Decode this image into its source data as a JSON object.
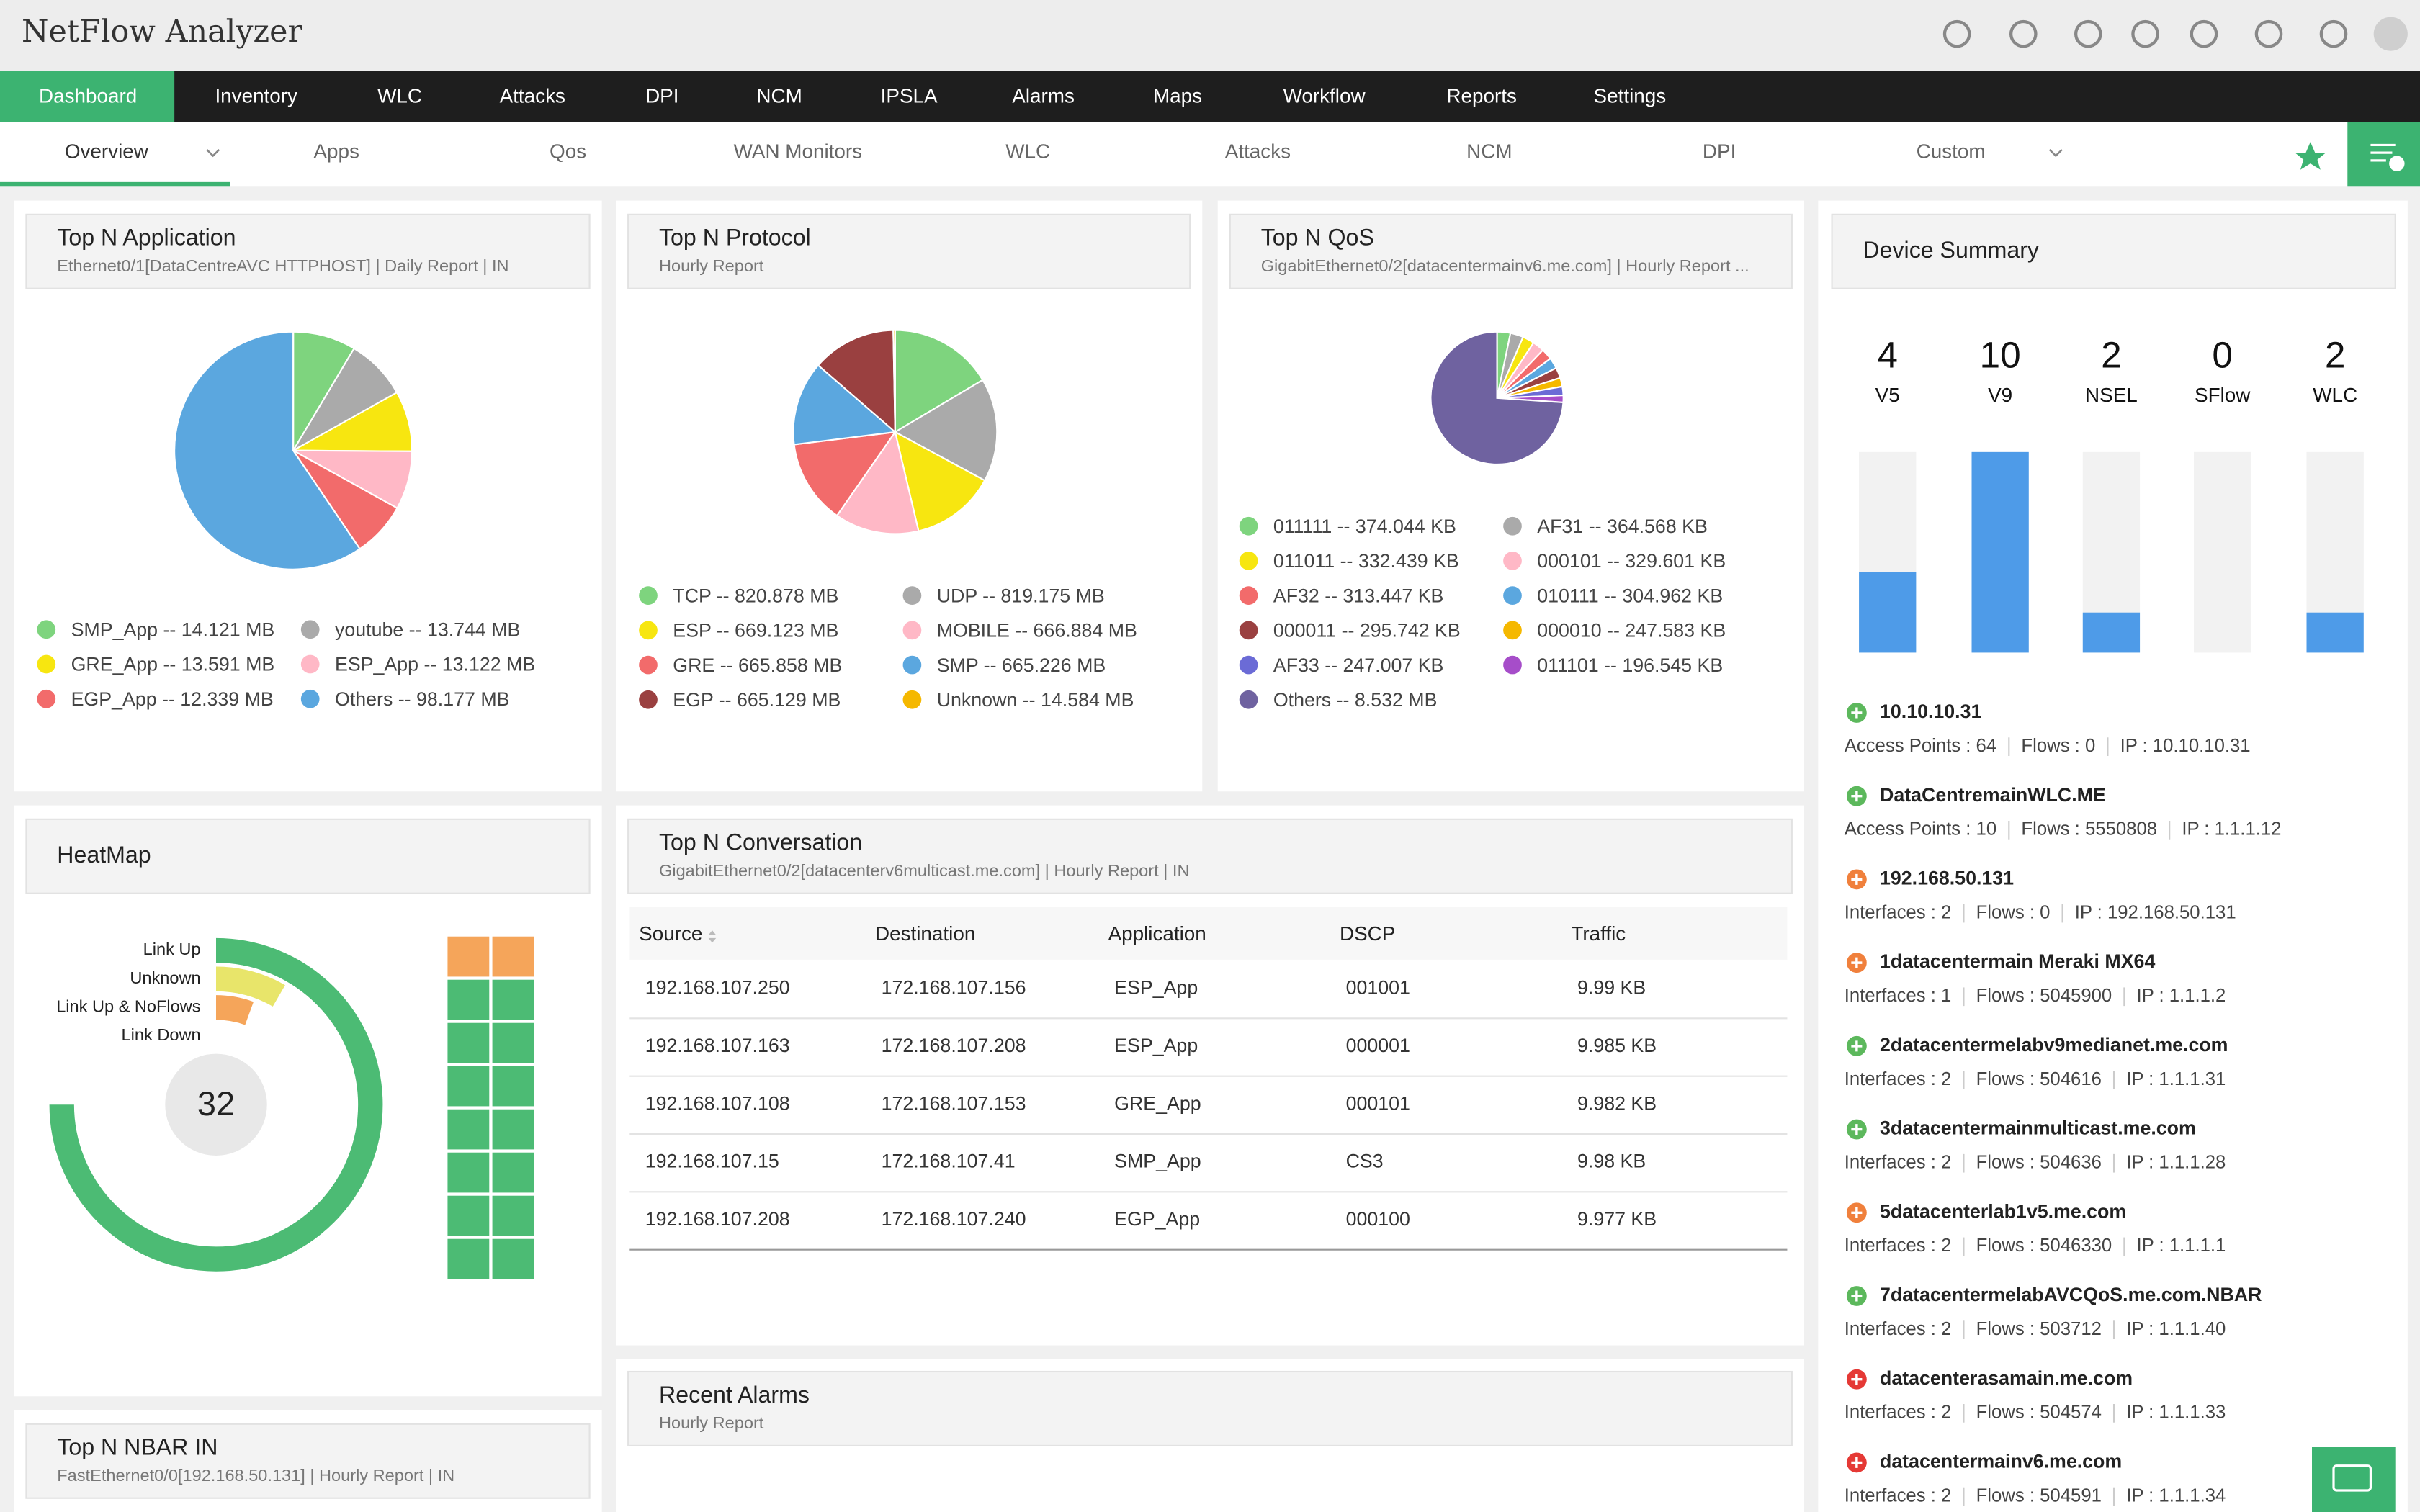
{
  "header": {
    "title": "NetFlow Analyzer"
  },
  "nav": {
    "tabs": [
      "Dashboard",
      "Inventory",
      "WLC",
      "Attacks",
      "DPI",
      "NCM",
      "IPSLA",
      "Alarms",
      "Maps",
      "Workflow",
      "Reports",
      "Settings"
    ]
  },
  "subnav": {
    "tabs": [
      "Overview",
      "Apps",
      "Qos",
      "WAN Monitors",
      "WLC",
      "Attacks",
      "NCM",
      "DPI",
      "Custom"
    ]
  },
  "widgets": {
    "top_app": {
      "title": "Top N Application",
      "subtitle": "Ethernet0/1[DataCentreAVC HTTPHOST] | Daily Report | IN",
      "legend": [
        {
          "label": "SMP_App -- 14.121 MB",
          "value": 14.121,
          "color": "#7ed47e"
        },
        {
          "label": "youtube -- 13.744 MB",
          "value": 13.744,
          "color": "#aaaaaa"
        },
        {
          "label": "GRE_App -- 13.591 MB",
          "value": 13.591,
          "color": "#f7e610"
        },
        {
          "label": "ESP_App -- 13.122 MB",
          "value": 13.122,
          "color": "#ffb8c6"
        },
        {
          "label": "EGP_App -- 12.339 MB",
          "value": 12.339,
          "color": "#f26b6b"
        },
        {
          "label": "Others -- 98.177 MB",
          "value": 98.177,
          "color": "#5ba7df"
        }
      ]
    },
    "top_protocol": {
      "title": "Top N Protocol",
      "subtitle": "Hourly Report",
      "legend": [
        {
          "label": "TCP -- 820.878 MB",
          "value": 820.878,
          "color": "#7ed47e"
        },
        {
          "label": "UDP -- 819.175 MB",
          "value": 819.175,
          "color": "#aaaaaa"
        },
        {
          "label": "ESP -- 669.123 MB",
          "value": 669.123,
          "color": "#f7e610"
        },
        {
          "label": "MOBILE -- 666.884 MB",
          "value": 666.884,
          "color": "#ffb8c6"
        },
        {
          "label": "GRE -- 665.858 MB",
          "value": 665.858,
          "color": "#f26b6b"
        },
        {
          "label": "SMP -- 665.226 MB",
          "value": 665.226,
          "color": "#5ba7df"
        },
        {
          "label": "EGP -- 665.129 MB",
          "value": 665.129,
          "color": "#9a4040"
        },
        {
          "label": "Unknown -- 14.584 MB",
          "value": 14.584,
          "color": "#f5b800"
        }
      ]
    },
    "top_qos": {
      "title": "Top N QoS",
      "subtitle": "GigabitEthernet0/2[datacentermainv6.me.com] | Hourly Report ...",
      "legend": [
        {
          "label": "011111 -- 374.044 KB",
          "value": 374.044,
          "color": "#7ed47e"
        },
        {
          "label": "AF31 -- 364.568 KB",
          "value": 364.568,
          "color": "#aaaaaa"
        },
        {
          "label": "011011 -- 332.439 KB",
          "value": 332.439,
          "color": "#f7e610"
        },
        {
          "label": "000101 -- 329.601 KB",
          "value": 329.601,
          "color": "#ffb8c6"
        },
        {
          "label": "AF32 -- 313.447 KB",
          "value": 313.447,
          "color": "#f26b6b"
        },
        {
          "label": "010111 -- 304.962 KB",
          "value": 304.962,
          "color": "#5ba7df"
        },
        {
          "label": "000011 -- 295.742 KB",
          "value": 295.742,
          "color": "#9a4040"
        },
        {
          "label": "000010 -- 247.583 KB",
          "value": 247.583,
          "color": "#f5b800"
        },
        {
          "label": "AF33 -- 247.007 KB",
          "value": 247.007,
          "color": "#6b6bd6"
        },
        {
          "label": "011101 -- 196.545 KB",
          "value": 196.545,
          "color": "#a64dc9"
        },
        {
          "label": "Others -- 8.532 MB",
          "value": 8532,
          "color": "#6f62a0"
        }
      ]
    },
    "device_summary": {
      "title": "Device Summary",
      "ylim": [
        0,
        10
      ],
      "color": "#4e9be8",
      "counts": [
        {
          "value": 4,
          "label": "V5"
        },
        {
          "value": 10,
          "label": "V9"
        },
        {
          "value": 2,
          "label": "NSEL"
        },
        {
          "value": 0,
          "label": "SFlow"
        },
        {
          "value": 2,
          "label": "WLC"
        }
      ],
      "devices": [
        {
          "name": "10.10.10.31",
          "icon_color": "#5cb85c",
          "details": [
            "Access Points : 64",
            "Flows : 0",
            "IP : 10.10.10.31"
          ]
        },
        {
          "name": "DataCentremainWLC.ME",
          "icon_color": "#5cb85c",
          "details": [
            "Access Points : 10",
            "Flows : 5550808",
            "IP : 1.1.1.12"
          ]
        },
        {
          "name": "192.168.50.131",
          "icon_color": "#f0803c",
          "details": [
            "Interfaces : 2",
            "Flows : 0",
            "IP : 192.168.50.131"
          ]
        },
        {
          "name": "1datacentermain Meraki MX64",
          "icon_color": "#f0803c",
          "details": [
            "Interfaces : 1",
            "Flows : 5045900",
            "IP : 1.1.1.2"
          ]
        },
        {
          "name": "2datacentermelabv9medianet.me.com",
          "icon_color": "#5cb85c",
          "details": [
            "Interfaces : 2",
            "Flows : 504616",
            "IP : 1.1.1.31"
          ]
        },
        {
          "name": "3datacentermainmulticast.me.com",
          "icon_color": "#5cb85c",
          "details": [
            "Interfaces : 2",
            "Flows : 504636",
            "IP : 1.1.1.28"
          ]
        },
        {
          "name": "5datacenterlab1v5.me.com",
          "icon_color": "#f0803c",
          "details": [
            "Interfaces : 2",
            "Flows : 5046330",
            "IP : 1.1.1.1"
          ]
        },
        {
          "name": "7datacentermelabAVCQoS.me.com.NBAR",
          "icon_color": "#5cb85c",
          "details": [
            "Interfaces : 2",
            "Flows : 503712",
            "IP : 1.1.1.40"
          ]
        },
        {
          "name": "datacenterasamain.me.com",
          "icon_color": "#e53935",
          "details": [
            "Interfaces : 2",
            "Flows : 504574",
            "IP : 1.1.1.33"
          ]
        },
        {
          "name": "datacentermainv6.me.com",
          "icon_color": "#e53935",
          "details": [
            "Interfaces : 2",
            "Flows : 504591",
            "IP : 1.1.1.34"
          ]
        }
      ]
    },
    "heatmap": {
      "title": "HeatMap",
      "total": 32,
      "states": [
        {
          "label": "Link Up",
          "value": 27,
          "color": "#4cbb74"
        },
        {
          "label": "Unknown",
          "value": 3,
          "color": "#e8e56a"
        },
        {
          "label": "Link Up & NoFlows",
          "value": 2,
          "color": "#f5a55a"
        },
        {
          "label": "Link Down",
          "value": 0,
          "color": "#e25555"
        }
      ]
    },
    "conversation": {
      "title": "Top N Conversation",
      "subtitle": "GigabitEthernet0/2[datacenterv6multicast.me.com] | Hourly Report | IN",
      "columns": [
        "Source",
        "Destination",
        "Application",
        "DSCP",
        "Traffic"
      ],
      "rows": [
        [
          "192.168.107.250",
          "172.168.107.156",
          "ESP_App",
          "001001",
          "9.99 KB"
        ],
        [
          "192.168.107.163",
          "172.168.107.208",
          "ESP_App",
          "000001",
          "9.985 KB"
        ],
        [
          "192.168.107.108",
          "172.168.107.153",
          "GRE_App",
          "000101",
          "9.982 KB"
        ],
        [
          "192.168.107.15",
          "172.168.107.41",
          "SMP_App",
          "CS3",
          "9.98 KB"
        ],
        [
          "192.168.107.208",
          "172.168.107.240",
          "EGP_App",
          "000100",
          "9.977 KB"
        ]
      ]
    },
    "alarms": {
      "title": "Recent Alarms",
      "subtitle": "Hourly Report"
    },
    "nbar": {
      "title": "Top N NBAR IN",
      "subtitle": "FastEthernet0/0[192.168.50.131] | Hourly Report | IN"
    }
  }
}
